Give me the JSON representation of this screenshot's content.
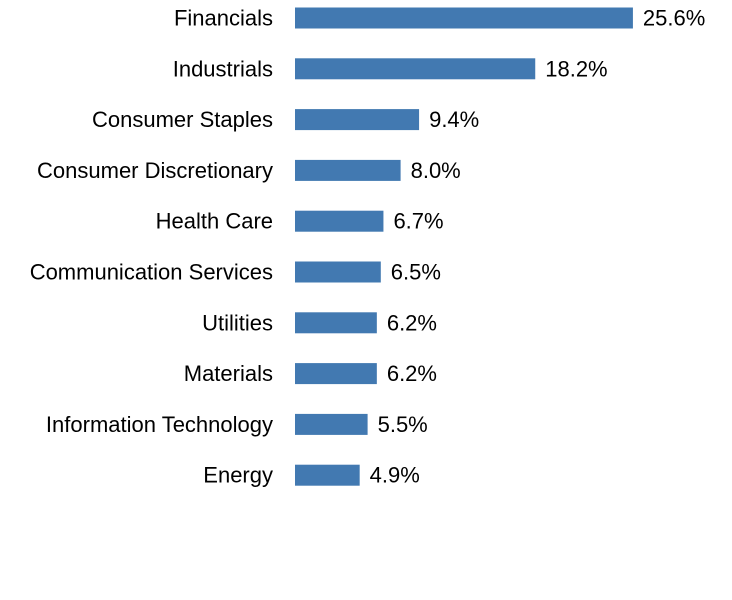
{
  "chart_data": {
    "type": "bar",
    "orientation": "horizontal",
    "categories": [
      "Financials",
      "Industrials",
      "Consumer Staples",
      "Consumer Discretionary",
      "Health Care",
      "Communication Services",
      "Utilities",
      "Materials",
      "Information Technology",
      "Energy"
    ],
    "values": [
      25.6,
      18.2,
      9.4,
      8.0,
      6.7,
      6.5,
      6.2,
      6.2,
      5.5,
      4.9
    ],
    "value_labels": [
      "25.6%",
      "18.2%",
      "9.4%",
      "8.0%",
      "6.7%",
      "6.5%",
      "6.2%",
      "6.2%",
      "5.5%",
      "4.9%"
    ],
    "unit": "%",
    "title": "",
    "xlabel": "",
    "ylabel": "",
    "grid": false,
    "axes_visible": false,
    "bar_color": "#4279b1"
  }
}
